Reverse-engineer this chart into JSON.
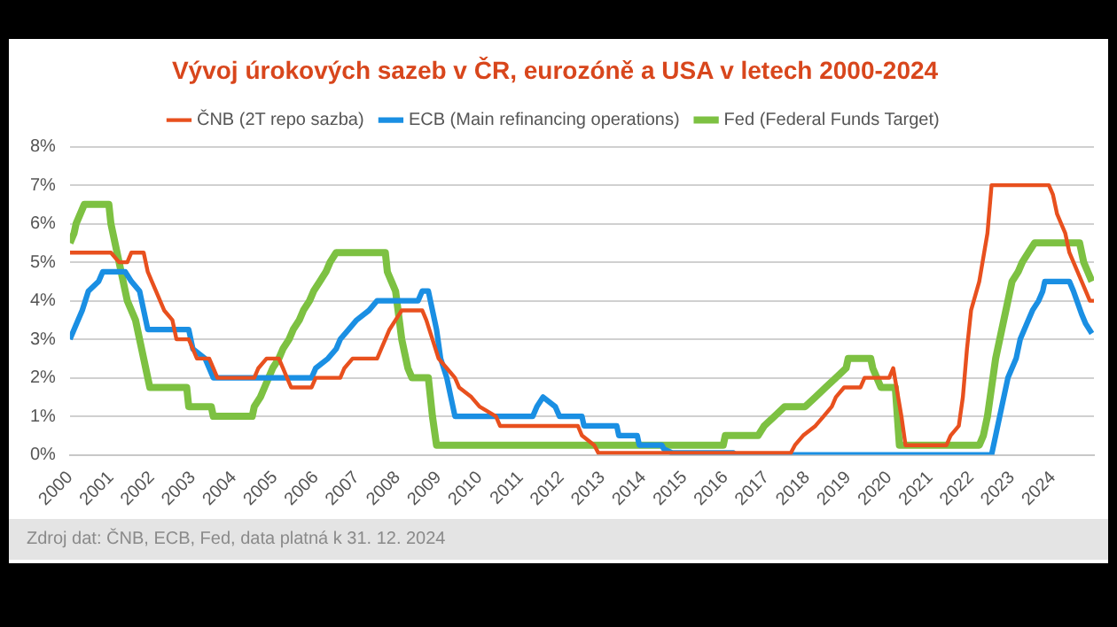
{
  "chart_data": {
    "type": "line",
    "title": "Vývoj úrokových sazeb v ČR, eurozóně a USA v letech 2000-2024",
    "xlim": [
      2000,
      2025
    ],
    "xticks": [
      2000,
      2001,
      2002,
      2003,
      2004,
      2005,
      2006,
      2007,
      2008,
      2009,
      2010,
      2011,
      2012,
      2013,
      2014,
      2015,
      2016,
      2017,
      2018,
      2019,
      2020,
      2021,
      2022,
      2023,
      2024
    ],
    "ylim": [
      0,
      8
    ],
    "yticks": [
      {
        "value": 0,
        "label": "0%"
      },
      {
        "value": 1,
        "label": "1%"
      },
      {
        "value": 2,
        "label": "2%"
      },
      {
        "value": 3,
        "label": "3%"
      },
      {
        "value": 4,
        "label": "4%"
      },
      {
        "value": 5,
        "label": "5%"
      },
      {
        "value": 6,
        "label": "6%"
      },
      {
        "value": 7,
        "label": "7%"
      },
      {
        "value": 8,
        "label": "8%"
      }
    ],
    "grid": "y",
    "legend": "top",
    "annotations": [
      "Zdroj dat: ČNB, ECB, Fed, data platná k 31. 12. 2024"
    ],
    "series": [
      {
        "name": "ČNB (2T repo sazba)",
        "color": "#e8501e",
        "x": [
          2000,
          2001,
          2001.2,
          2001.4,
          2001.5,
          2001.8,
          2001.9,
          2002,
          2002.1,
          2002.3,
          2002.5,
          2002.6,
          2002.9,
          2003,
          2003.1,
          2003.4,
          2003.5,
          2003.6,
          2004.5,
          2004.6,
          2004.8,
          2005.1,
          2005.2,
          2005.3,
          2005.4,
          2005.9,
          2006,
          2006.6,
          2006.7,
          2006.9,
          2007.5,
          2007.6,
          2007.7,
          2007.8,
          2007.95,
          2008.1,
          2008.6,
          2008.7,
          2008.85,
          2009,
          2009.2,
          2009.4,
          2009.5,
          2009.8,
          2010,
          2010.4,
          2010.5,
          2012.4,
          2012.5,
          2012.8,
          2012.9,
          2017.6,
          2017.7,
          2017.9,
          2018.2,
          2018.4,
          2018.6,
          2018.7,
          2018.9,
          2019.3,
          2019.4,
          2020,
          2020.1,
          2020.3,
          2020.4,
          2021.4,
          2021.5,
          2021.7,
          2021.8,
          2021.9,
          2022,
          2022.2,
          2022.4,
          2022.5,
          2023.9,
          2024,
          2024.1,
          2024.3,
          2024.4,
          2024.6,
          2024.8,
          2024.9,
          2025
        ],
        "values": [
          5.25,
          5.25,
          5,
          5,
          5.25,
          5.25,
          4.75,
          4.5,
          4.25,
          3.75,
          3.5,
          3,
          3,
          2.75,
          2.5,
          2.5,
          2.25,
          2,
          2,
          2.25,
          2.5,
          2.5,
          2.25,
          2,
          1.75,
          1.75,
          2,
          2,
          2.25,
          2.5,
          2.5,
          2.75,
          3,
          3.25,
          3.5,
          3.75,
          3.75,
          3.5,
          3,
          2.5,
          2.25,
          2,
          1.75,
          1.5,
          1.25,
          1,
          0.75,
          0.75,
          0.5,
          0.25,
          0.05,
          0.05,
          0.25,
          0.5,
          0.75,
          1,
          1.25,
          1.5,
          1.75,
          1.75,
          2,
          2,
          2.25,
          1,
          0.25,
          0.25,
          0.5,
          0.75,
          1.5,
          2.75,
          3.75,
          4.5,
          5.75,
          7,
          7,
          6.75,
          6.25,
          5.75,
          5.25,
          4.75,
          4.25,
          4,
          4
        ]
      },
      {
        "name": "ECB (Main refinancing operations)",
        "color": "#1a8fe3",
        "x": [
          2000,
          2000.2,
          2000.3,
          2000.45,
          2000.7,
          2000.8,
          2001.35,
          2001.5,
          2001.7,
          2001.8,
          2001.9,
          2002.9,
          2003,
          2003.3,
          2003.5,
          2005.9,
          2006,
          2006.3,
          2006.5,
          2006.6,
          2006.8,
          2007,
          2007.3,
          2007.5,
          2008.5,
          2008.6,
          2008.75,
          2008.85,
          2008.95,
          2009.05,
          2009.2,
          2009.3,
          2009.4,
          2011.3,
          2011.4,
          2011.55,
          2011.85,
          2011.95,
          2012.5,
          2012.55,
          2013.35,
          2013.4,
          2013.85,
          2013.9,
          2014.45,
          2014.5,
          2014.7,
          2016.2,
          2016.25,
          2022.5,
          2022.6,
          2022.75,
          2022.9,
          2023.1,
          2023.2,
          2023.4,
          2023.5,
          2023.65,
          2023.75,
          2023.8,
          2024.4,
          2024.5,
          2024.7,
          2024.8,
          2024.95
        ],
        "values": [
          3,
          3.5,
          3.75,
          4.25,
          4.5,
          4.75,
          4.75,
          4.5,
          4.25,
          3.75,
          3.25,
          3.25,
          2.75,
          2.5,
          2,
          2,
          2.25,
          2.5,
          2.75,
          3,
          3.25,
          3.5,
          3.75,
          4,
          4,
          4.25,
          4.25,
          3.75,
          3.25,
          2.5,
          2,
          1.5,
          1,
          1,
          1.25,
          1.5,
          1.25,
          1,
          1,
          0.75,
          0.75,
          0.5,
          0.5,
          0.25,
          0.25,
          0.15,
          0.05,
          0.05,
          0,
          0,
          0.5,
          1.25,
          2,
          2.5,
          3,
          3.5,
          3.75,
          4,
          4.25,
          4.5,
          4.5,
          4.25,
          3.65,
          3.4,
          3.15
        ]
      },
      {
        "name": "Fed (Federal Funds Target)",
        "color": "#7dc142",
        "x": [
          2000,
          2000.1,
          2000.15,
          2000.35,
          2000.95,
          2001,
          2001.1,
          2001.2,
          2001.3,
          2001.4,
          2001.5,
          2001.6,
          2001.7,
          2001.8,
          2001.9,
          2001.95,
          2002.85,
          2002.9,
          2003.45,
          2003.5,
          2004.45,
          2004.5,
          2004.65,
          2004.75,
          2004.85,
          2004.95,
          2005.1,
          2005.2,
          2005.35,
          2005.45,
          2005.6,
          2005.7,
          2005.85,
          2005.95,
          2006.1,
          2006.25,
          2006.35,
          2006.5,
          2007.7,
          2007.75,
          2007.85,
          2007.95,
          2008.1,
          2008.25,
          2008.35,
          2008.75,
          2008.8,
          2008.85,
          2008.95,
          2015.95,
          2016,
          2016.8,
          2016.95,
          2017.2,
          2017.45,
          2017.95,
          2018.2,
          2018.45,
          2018.7,
          2018.95,
          2019,
          2019.55,
          2019.6,
          2019.7,
          2019.8,
          2020.15,
          2020.25,
          2022.2,
          2022.3,
          2022.4,
          2022.5,
          2022.6,
          2022.75,
          2022.9,
          2023,
          2023.15,
          2023.25,
          2023.4,
          2023.55,
          2024.65,
          2024.75,
          2024.85,
          2024.95
        ],
        "values": [
          5.5,
          5.75,
          6,
          6.5,
          6.5,
          6,
          5.5,
          5,
          4.5,
          4,
          3.75,
          3.5,
          3,
          2.5,
          2,
          1.75,
          1.75,
          1.25,
          1.25,
          1,
          1,
          1.25,
          1.5,
          1.75,
          2,
          2.25,
          2.5,
          2.75,
          3,
          3.25,
          3.5,
          3.75,
          4,
          4.25,
          4.5,
          4.75,
          5,
          5.25,
          5.25,
          4.75,
          4.5,
          4.25,
          3,
          2.25,
          2,
          2,
          1.5,
          1,
          0.25,
          0.25,
          0.5,
          0.5,
          0.75,
          1,
          1.25,
          1.25,
          1.5,
          1.75,
          2,
          2.25,
          2.5,
          2.5,
          2.25,
          2,
          1.75,
          1.75,
          0.25,
          0.25,
          0.5,
          1,
          1.75,
          2.5,
          3.25,
          4,
          4.5,
          4.75,
          5,
          5.25,
          5.5,
          5.5,
          5,
          4.75,
          4.5
        ]
      }
    ]
  }
}
